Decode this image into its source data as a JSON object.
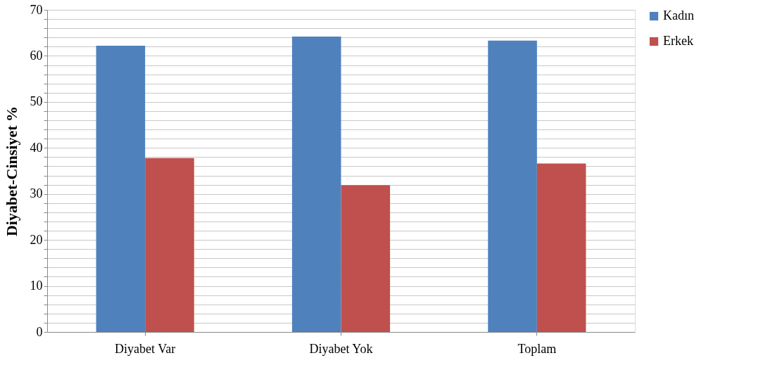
{
  "chart_data": {
    "type": "bar",
    "ylabel": "Diyabet-Cinsiyet %",
    "categories": [
      "Diyabet Var",
      "Diyabet Yok",
      "Toplam"
    ],
    "series": [
      {
        "name": "Kadın",
        "color": "#4f81bd",
        "values": [
          62.2,
          64.2,
          63.3
        ]
      },
      {
        "name": "Erkek",
        "color": "#c0504d",
        "values": [
          37.8,
          31.9,
          36.6
        ]
      }
    ],
    "ylim": [
      0,
      70
    ],
    "yticks": [
      0,
      {
        "value": 2,
        "label": null
      },
      {
        "value": 4,
        "label": null
      },
      {
        "value": 6,
        "label": null
      },
      {
        "value": 8,
        "label": null
      },
      10,
      {
        "value": 12,
        "label": null
      },
      {
        "value": 14,
        "label": null
      },
      {
        "value": 16,
        "label": null
      },
      {
        "value": 18,
        "label": null
      },
      20,
      {
        "value": 22,
        "label": null
      },
      {
        "value": 24,
        "label": null
      },
      {
        "value": 26,
        "label": null
      },
      {
        "value": 28,
        "label": null
      },
      30,
      {
        "value": 32,
        "label": null
      },
      {
        "value": 34,
        "label": null
      },
      {
        "value": 36,
        "label": null
      },
      {
        "value": 38,
        "label": null
      },
      40,
      {
        "value": 42,
        "label": null
      },
      {
        "value": 44,
        "label": null
      },
      {
        "value": 46,
        "label": null
      },
      {
        "value": 48,
        "label": null
      },
      50,
      {
        "value": 52,
        "label": null
      },
      {
        "value": 54,
        "label": null
      },
      {
        "value": 56,
        "label": null
      },
      {
        "value": 58,
        "label": null
      },
      60,
      {
        "value": 62,
        "label": null
      },
      {
        "value": 64,
        "label": null
      },
      {
        "value": 66,
        "label": null
      },
      {
        "value": 68,
        "label": null
      },
      70
    ],
    "grid": true,
    "legend": "right"
  }
}
